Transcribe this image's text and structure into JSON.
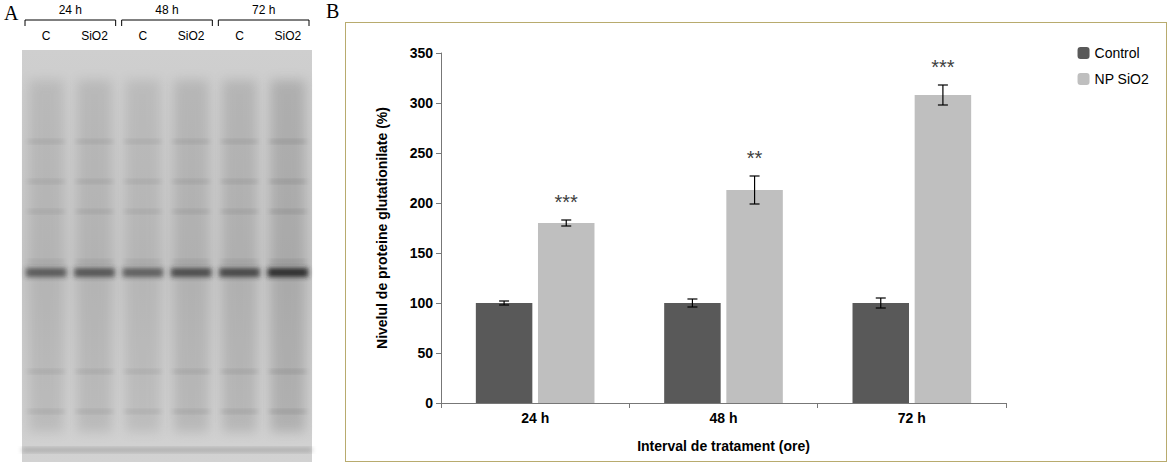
{
  "gel": {
    "panel_label": "A",
    "groups": [
      {
        "label": "24 h",
        "lanes": [
          "C",
          "SiO2"
        ]
      },
      {
        "label": "48 h",
        "lanes": [
          "C",
          "SiO2"
        ]
      },
      {
        "label": "72 h",
        "lanes": [
          "C",
          "SiO2"
        ]
      }
    ]
  },
  "chart_data": {
    "type": "bar",
    "panel_label": "B",
    "x_label": "Interval de tratament (ore)",
    "y_label": "Nivelul de proteine glutationilate (%)",
    "categories": [
      "24 h",
      "48 h",
      "72 h"
    ],
    "series": [
      {
        "name": "Control",
        "color": "#595959",
        "values": [
          100,
          100,
          100
        ],
        "errors": [
          2,
          4,
          5
        ]
      },
      {
        "name": "NP SiO2",
        "color": "#bfbfbf",
        "values": [
          180,
          213,
          308
        ],
        "errors": [
          3,
          14,
          10
        ],
        "significance": [
          "***",
          "**",
          "***"
        ]
      }
    ],
    "ylim": [
      0,
      350
    ],
    "yticks": [
      0,
      50,
      100,
      150,
      200,
      250,
      300,
      350
    ],
    "grid": false,
    "legend": "upper right"
  }
}
